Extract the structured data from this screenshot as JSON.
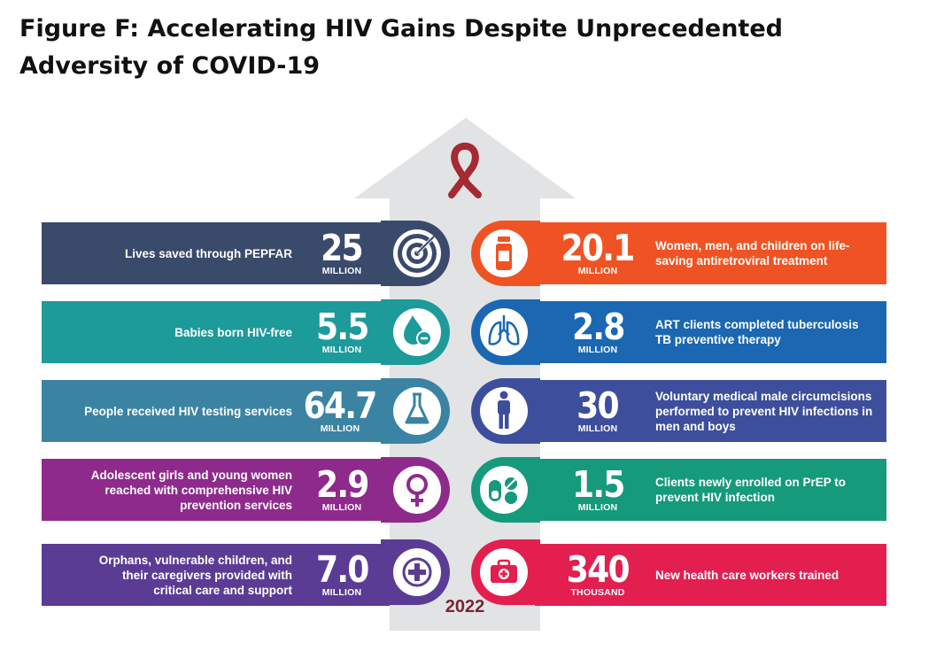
{
  "title": "Figure F:  Accelerating HIV Gains Despite Unprecedented Adversity of COVID-19",
  "year": "2022",
  "colors": {
    "arrow": "#e2e3e5",
    "ribbon": "#a52a32",
    "navy": "#3a4a6b",
    "orange": "#f05323",
    "teal": "#1d9a9a",
    "blue": "#1b67b1",
    "steel": "#3b83a3",
    "indigo": "#3d4e9c",
    "purple": "#8e2a8c",
    "green": "#159a7b",
    "violet": "#5a3c95",
    "crimson": "#e21f4f"
  },
  "left": [
    {
      "number": "25",
      "unit": "MILLION",
      "label": "Lives saved through PEPFAR",
      "icon": "target-icon"
    },
    {
      "number": "5.5",
      "unit": "MILLION",
      "label": "Babies born HIV-free",
      "icon": "drop-icon"
    },
    {
      "number": "64.7",
      "unit": "MILLION",
      "label": "People received HIV testing services",
      "icon": "flask-icon"
    },
    {
      "number": "2.9",
      "unit": "MILLION",
      "label": "Adolescent girls and young women reached with comprehensive HIV prevention services",
      "icon": "female-icon"
    },
    {
      "number": "7.0",
      "unit": "MILLION",
      "label": "Orphans, vulnerable children, and their caregivers provided with critical care and support",
      "icon": "plus-icon"
    }
  ],
  "right": [
    {
      "number": "20.1",
      "unit": "MILLION",
      "label": "Women, men, and children on life-saving antiretroviral treatment",
      "icon": "pill-bottle-icon"
    },
    {
      "number": "2.8",
      "unit": "MILLION",
      "label": "ART clients completed tuberculosis TB preventive therapy",
      "icon": "lungs-icon"
    },
    {
      "number": "30",
      "unit": "MILLION",
      "label": "Voluntary medical male circumcisions performed to prevent HIV infections in men and boys",
      "icon": "person-icon"
    },
    {
      "number": "1.5",
      "unit": "MILLION",
      "label": "Clients newly enrolled on PrEP to prevent HIV infection",
      "icon": "pills-icon"
    },
    {
      "number": "340",
      "unit": "THOUSAND",
      "label": "New health care workers trained",
      "icon": "first-aid-kit-icon"
    }
  ]
}
